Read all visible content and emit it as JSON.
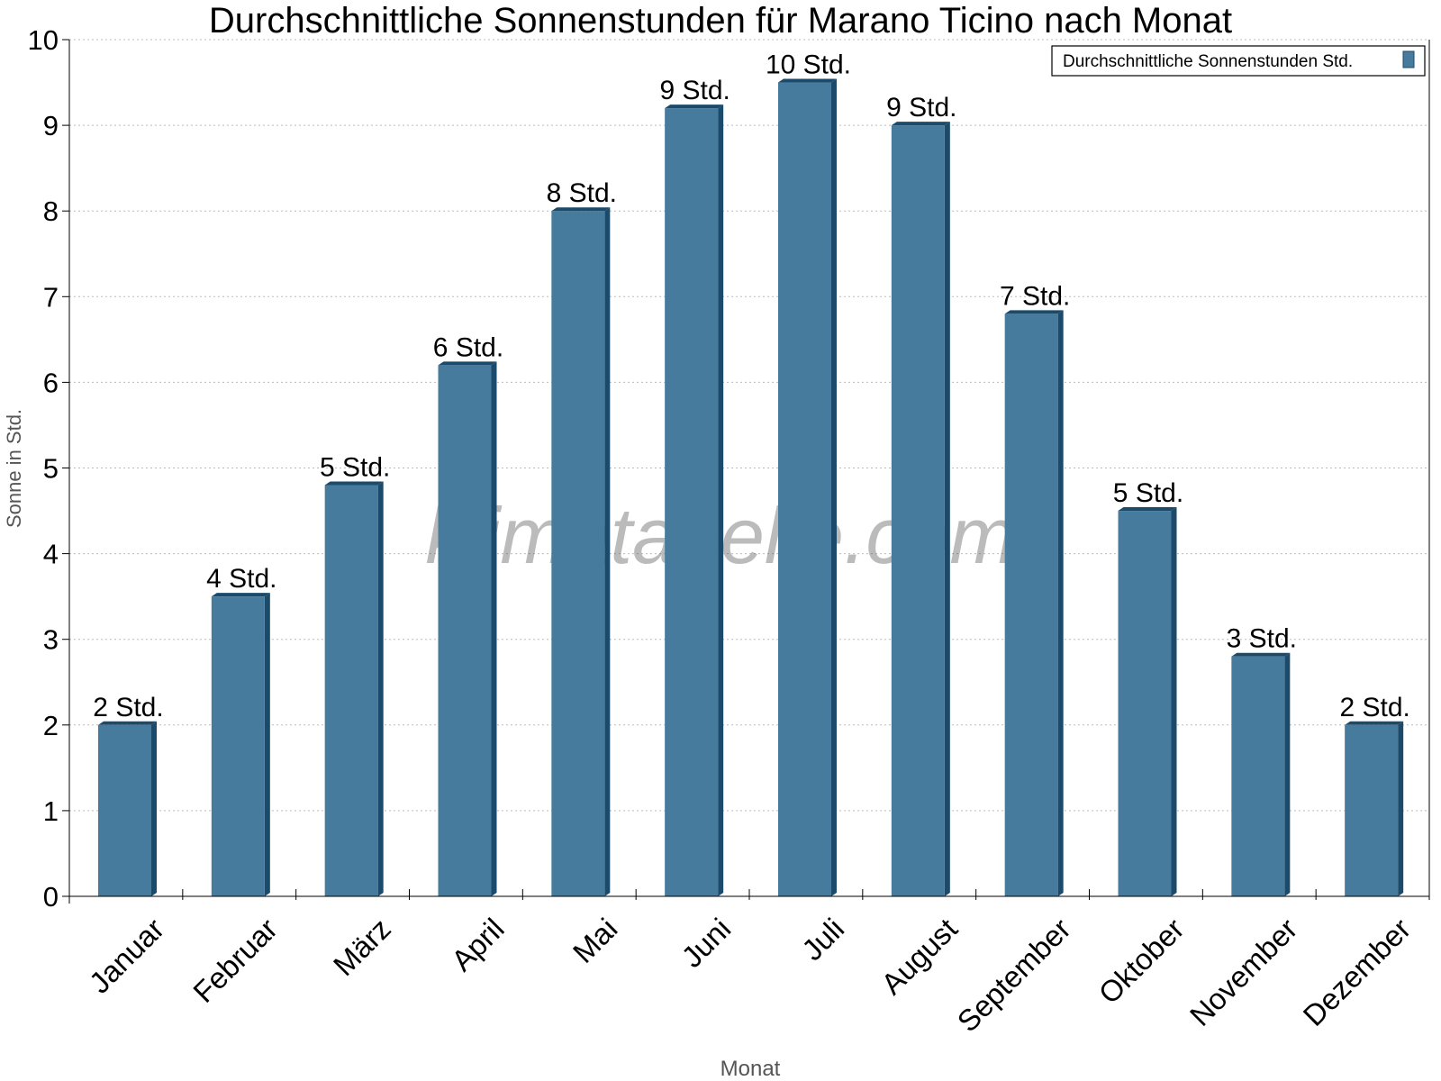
{
  "chart_data": {
    "type": "bar",
    "title": "Durchschnittliche Sonnenstunden für Marano Ticino nach Monat",
    "xlabel": "Monat",
    "ylabel": "Sonne in Std.",
    "ylim": [
      0,
      10
    ],
    "yticks": [
      "0",
      "1",
      "2",
      "3",
      "4",
      "5",
      "6",
      "7",
      "8",
      "9",
      "10"
    ],
    "grid": true,
    "legend_position": "top-right",
    "categories": [
      "Januar",
      "Februar",
      "März",
      "April",
      "Mai",
      "Juni",
      "Juli",
      "August",
      "September",
      "Oktober",
      "November",
      "Dezember"
    ],
    "series": [
      {
        "name": "Durchschnittliche Sonnenstunden Std.",
        "color": "#467b9d",
        "values": [
          2.0,
          3.5,
          4.8,
          6.2,
          8.0,
          9.2,
          9.5,
          9.0,
          6.8,
          4.5,
          2.8,
          2.0
        ],
        "labels": [
          "2 Std.",
          "4 Std.",
          "5 Std.",
          "6 Std.",
          "8 Std.",
          "9 Std.",
          "10 Std.",
          "9 Std.",
          "7 Std.",
          "5 Std.",
          "3 Std.",
          "2 Std."
        ]
      }
    ],
    "watermark": "klimatabelle.com"
  }
}
